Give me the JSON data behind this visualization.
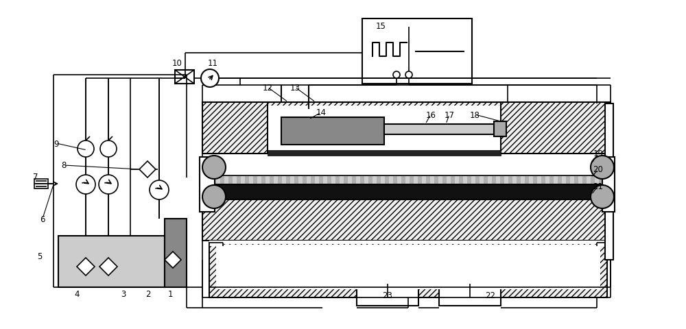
{
  "bg_color": "#ffffff",
  "figsize": [
    10.0,
    4.81
  ],
  "dpi": 100
}
